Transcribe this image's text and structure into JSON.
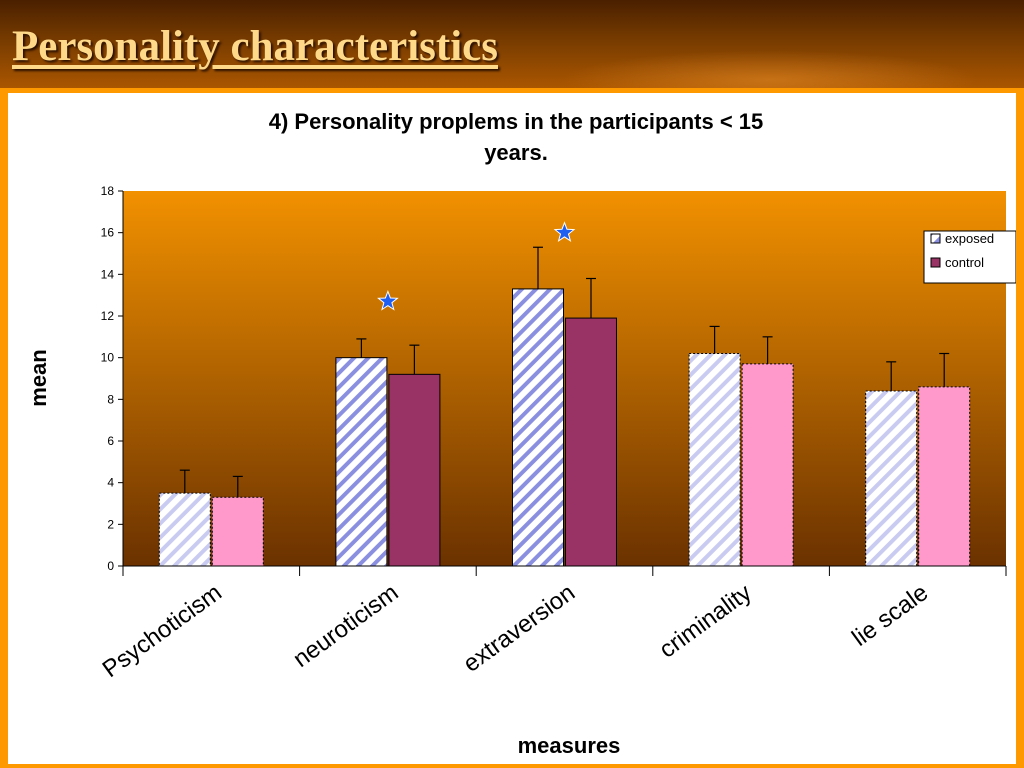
{
  "slide": {
    "title": "Personality characteristics"
  },
  "colors": {
    "frame": "#ff9900",
    "plot_top": "#f29100",
    "plot_bottom": "#6b3200",
    "exposed_stripe": "#9fa3e6",
    "control_dark": "#993366",
    "control_light": "#ff99cc",
    "star": "#1e5ef0"
  },
  "chart_data": {
    "type": "bar",
    "title_lines": [
      "4) Personality proplems in the participants < 15",
      "years."
    ],
    "xlabel": "measures",
    "ylabel": "mean",
    "ylim": [
      0,
      18
    ],
    "yticks": [
      0,
      2,
      4,
      6,
      8,
      10,
      12,
      14,
      16,
      18
    ],
    "categories": [
      "Psychoticism",
      "neuroticism",
      "extraversion",
      "criminality",
      "lie scale"
    ],
    "series": [
      {
        "name": "exposed",
        "values": [
          3.5,
          10.0,
          13.3,
          10.2,
          8.4
        ],
        "errors": [
          1.1,
          0.9,
          2.0,
          1.3,
          1.4
        ]
      },
      {
        "name": "control",
        "values": [
          3.3,
          9.2,
          11.9,
          9.7,
          8.6
        ],
        "errors": [
          1.0,
          1.4,
          1.9,
          1.3,
          1.6
        ]
      }
    ],
    "highlighted_categories": [
      0,
      3,
      4
    ],
    "significance_markers": [
      {
        "category": 1,
        "y": 12.7
      },
      {
        "category": 2,
        "y": 16.0
      }
    ],
    "legend": {
      "position": "right",
      "entries": [
        "exposed",
        "control"
      ]
    },
    "grid": false
  }
}
